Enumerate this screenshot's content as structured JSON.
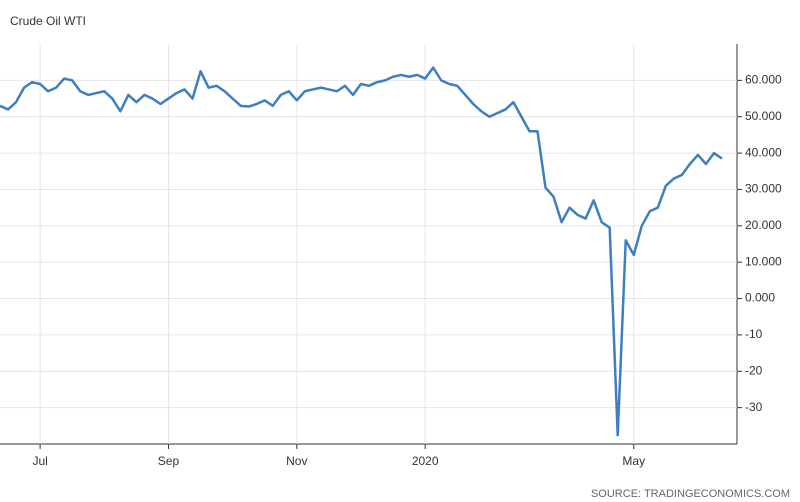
{
  "chart_data": {
    "type": "line",
    "title": "Crude Oil WTI",
    "source": "SOURCE: TRADINGECONOMICS.COM",
    "categories": [
      null,
      null,
      null,
      null,
      null,
      "Jul",
      null,
      null,
      null,
      null,
      null,
      null,
      null,
      null,
      null,
      null,
      null,
      null,
      null,
      null,
      null,
      "Sep",
      null,
      null,
      null,
      null,
      null,
      null,
      null,
      null,
      null,
      null,
      null,
      null,
      null,
      null,
      null,
      "Nov",
      null,
      null,
      null,
      null,
      null,
      null,
      null,
      null,
      null,
      null,
      null,
      null,
      null,
      null,
      null,
      "2020",
      null,
      null,
      null,
      null,
      null,
      null,
      null,
      null,
      null,
      null,
      null,
      null,
      null,
      null,
      null,
      null,
      null,
      null,
      null,
      null,
      null,
      null,
      null,
      null,
      null,
      "May",
      null,
      null,
      null,
      null,
      null,
      null,
      null,
      null,
      null,
      null,
      null
    ],
    "series": [
      {
        "name": "Crude Oil WTI",
        "color": "#3f7fbf",
        "values": [
          53,
          52,
          54,
          58,
          59.5,
          59,
          57,
          58,
          60.5,
          60,
          57,
          56,
          56.5,
          57,
          55,
          51.5,
          56,
          54,
          56,
          55,
          53.5,
          55,
          56.5,
          57.5,
          55,
          62.5,
          58,
          58.5,
          57,
          55,
          53,
          52.8,
          53.5,
          54.5,
          53,
          56,
          57,
          54.5,
          57,
          57.5,
          58,
          57.5,
          57,
          58.5,
          56,
          59,
          58.5,
          59.5,
          60,
          61,
          61.5,
          61,
          61.5,
          60.5,
          63.5,
          60,
          59,
          58.5,
          56,
          53.5,
          51.5,
          50,
          51,
          52,
          54,
          50,
          46,
          46,
          30.5,
          28,
          21,
          25,
          23,
          22,
          27,
          21,
          19.5,
          -37.6,
          16,
          12,
          20,
          24,
          25,
          31,
          33,
          34,
          37,
          39.5,
          37,
          40,
          38.5
        ]
      }
    ],
    "ylim": [
      -40,
      70
    ],
    "yticks": [
      {
        "value": 60,
        "label": "60.000"
      },
      {
        "value": 50,
        "label": "50.000"
      },
      {
        "value": 40,
        "label": "40.000"
      },
      {
        "value": 30,
        "label": "30.000"
      },
      {
        "value": 20,
        "label": "20.000"
      },
      {
        "value": 10,
        "label": "10.000"
      },
      {
        "value": 0,
        "label": "0.000"
      },
      -10,
      -20,
      -30
    ],
    "grid": true
  }
}
